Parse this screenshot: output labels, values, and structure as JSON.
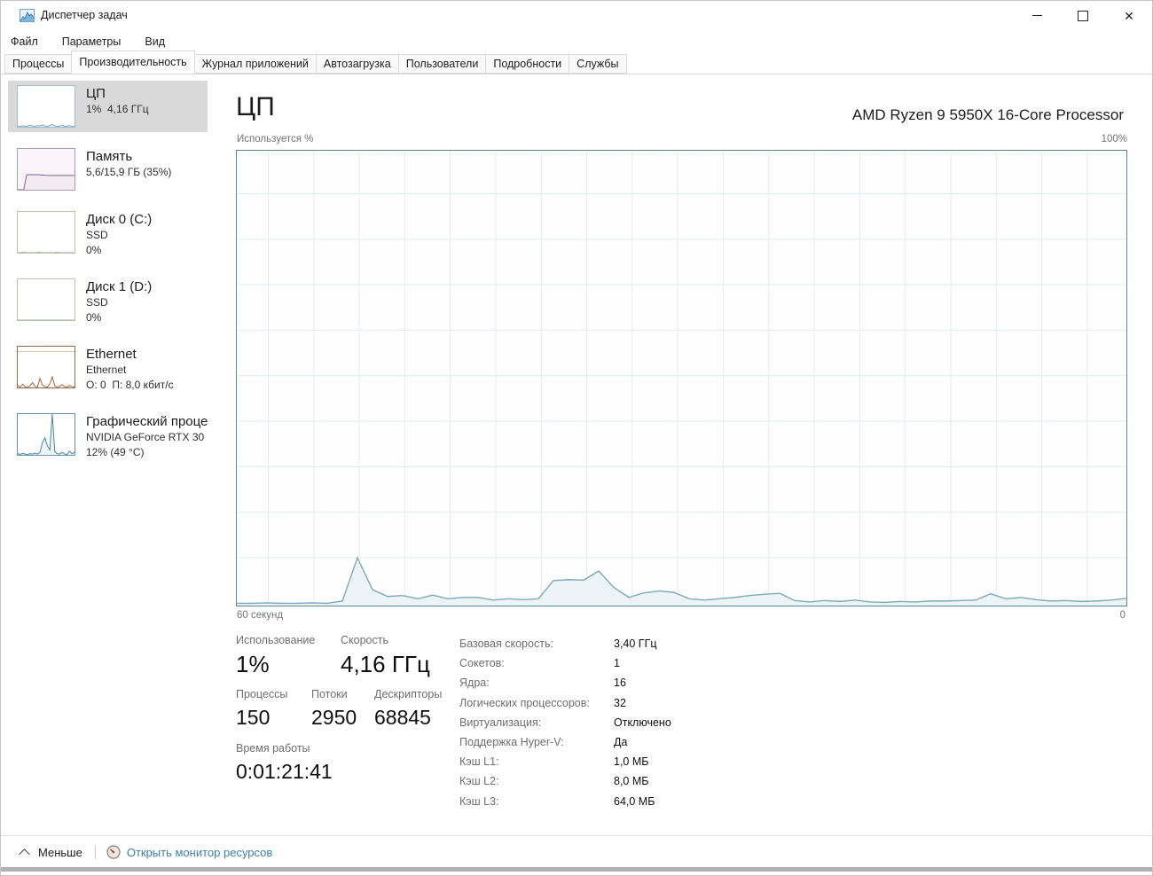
{
  "window": {
    "title": "Диспетчер задач",
    "icons": {
      "app": "task-manager-chart-icon",
      "minimize": "minimize-icon",
      "maximize": "maximize-icon",
      "close": "close-icon"
    }
  },
  "menu": {
    "items": [
      {
        "label": "Файл"
      },
      {
        "label": "Параметры"
      },
      {
        "label": "Вид"
      }
    ]
  },
  "tabs": {
    "items": [
      {
        "label": "Процессы",
        "active": false
      },
      {
        "label": "Производительность",
        "active": true
      },
      {
        "label": "Журнал приложений",
        "active": false
      },
      {
        "label": "Автозагрузка",
        "active": false
      },
      {
        "label": "Пользователи",
        "active": false
      },
      {
        "label": "Подробности",
        "active": false
      },
      {
        "label": "Службы",
        "active": false
      }
    ]
  },
  "sidebar": {
    "items": [
      {
        "id": "cpu",
        "title": "ЦП",
        "line2": "1%  4,16 ГГц",
        "line3": "",
        "selected": true,
        "spark": [
          2,
          1,
          3,
          1,
          2,
          4,
          2,
          1,
          3,
          2,
          5,
          2,
          1,
          3,
          6,
          2,
          1,
          2,
          4,
          1,
          2,
          3,
          1,
          2
        ]
      },
      {
        "id": "memory",
        "title": "Память",
        "line2": "5,6/15,9 ГБ (35%)",
        "line3": "",
        "selected": false,
        "spark": [
          0,
          0,
          0,
          37,
          37,
          37,
          37,
          37,
          36,
          36,
          35,
          35,
          35,
          35,
          35,
          35,
          35,
          35,
          35,
          35
        ]
      },
      {
        "id": "disk0",
        "title": "Диск 0 (C:)",
        "line2": "SSD",
        "line3": "0%",
        "selected": false,
        "spark": [
          0,
          0,
          1,
          0,
          0,
          0,
          0,
          1,
          0,
          0,
          0,
          0,
          0,
          1,
          0,
          0,
          0,
          0,
          0,
          0
        ]
      },
      {
        "id": "disk1",
        "title": "Диск 1 (D:)",
        "line2": "SSD",
        "line3": "0%",
        "selected": false,
        "spark": [
          0,
          0,
          0,
          0,
          0,
          0,
          0,
          0,
          0,
          0,
          0,
          0,
          0,
          0,
          0,
          0,
          0,
          0,
          0,
          0
        ]
      },
      {
        "id": "ethernet",
        "title": "Ethernet",
        "line2": "Ethernet",
        "line3": "О: 0  П: 8,0 кбит/с",
        "selected": false,
        "spark": [
          5,
          1,
          8,
          2,
          1,
          4,
          12,
          3,
          1,
          22,
          6,
          2,
          1,
          9,
          26,
          4,
          1,
          3,
          7,
          2,
          1,
          5,
          2,
          1
        ]
      },
      {
        "id": "gpu",
        "title": "Графический процессор",
        "line2": "NVIDIA GeForce RTX 30",
        "line3": "12% (49 °C)",
        "selected": false,
        "spark": [
          3,
          1,
          4,
          2,
          1,
          3,
          2,
          4,
          2,
          6,
          30,
          42,
          22,
          12,
          100,
          8,
          3,
          2,
          6,
          2,
          1,
          9,
          3,
          6
        ]
      }
    ]
  },
  "main": {
    "title": "ЦП",
    "device": "AMD Ryzen 9 5950X 16-Core Processor",
    "axis_top_left": "Используется %",
    "axis_top_right": "100%",
    "axis_bottom_left": "60 секунд",
    "axis_bottom_right": "0"
  },
  "chart_data": {
    "type": "area",
    "title": "ЦП — Используется %",
    "ylabel": "Используется %",
    "xlabel": "секунды (60 → 0)",
    "ylim": [
      0,
      100
    ],
    "x_range": [
      60,
      0
    ],
    "grid": true,
    "values": [
      0.5,
      0.5,
      0.6,
      0.5,
      0.5,
      0.6,
      0.5,
      1,
      10.5,
      3.5,
      2,
      2.2,
      1.5,
      2.3,
      1.5,
      1.8,
      1.8,
      1.2,
      1.5,
      1.3,
      1.5,
      5.5,
      5.7,
      5.6,
      7.6,
      4,
      1.8,
      2.8,
      3.2,
      2.9,
      1.5,
      1.2,
      1.5,
      1.8,
      2.2,
      2.5,
      2.7,
      1.1,
      0.8,
      1.1,
      0.9,
      1.2,
      0.8,
      0.7,
      0.9,
      0.8,
      1,
      1,
      1.1,
      1.2,
      2.6,
      1.5,
      1.8,
      1.3,
      1,
      1.1,
      0.9,
      1,
      1.2,
      1.6
    ]
  },
  "stats": {
    "usage_label": "Использование",
    "usage_value": "1%",
    "speed_label": "Скорость",
    "speed_value": "4,16 ГГц",
    "processes_label": "Процессы",
    "processes_value": "150",
    "threads_label": "Потоки",
    "threads_value": "2950",
    "handles_label": "Дескрипторы",
    "handles_value": "68845",
    "uptime_label": "Время работы",
    "uptime_value": "0:01:21:41"
  },
  "details": {
    "rows": [
      {
        "label": "Базовая скорость:",
        "value": "3,40 ГГц"
      },
      {
        "label": "Сокетов:",
        "value": "1"
      },
      {
        "label": "Ядра:",
        "value": "16"
      },
      {
        "label": "Логических процессоров:",
        "value": "32"
      },
      {
        "label": "Виртуализация:",
        "value": "Отключено"
      },
      {
        "label": "Поддержка Hyper-V:",
        "value": "Да"
      },
      {
        "label": "Кэш L1:",
        "value": "1,0 МБ"
      },
      {
        "label": "Кэш L2:",
        "value": "8,0 МБ"
      },
      {
        "label": "Кэш L3:",
        "value": "64,0 МБ"
      }
    ]
  },
  "footer": {
    "less_label": "Меньше",
    "resmon_label": "Открыть монитор ресурсов",
    "icons": {
      "chevron": "chevron-up-icon",
      "resmon": "gauge-icon"
    }
  },
  "colors": {
    "cpu_line": "#7fa8ba",
    "cpu_fill": "#edf4f7",
    "chart_border": "#5d8799",
    "grid": "#e3ecef",
    "mem_line": "#7a6a8a",
    "mem_fill": "#f3eaf4",
    "disk_line": "#9aad8c",
    "eth_line": "#a5663c",
    "gpu_line": "#4c87a0",
    "link": "#3c7fae",
    "selected_bg": "#d9d9d9"
  }
}
